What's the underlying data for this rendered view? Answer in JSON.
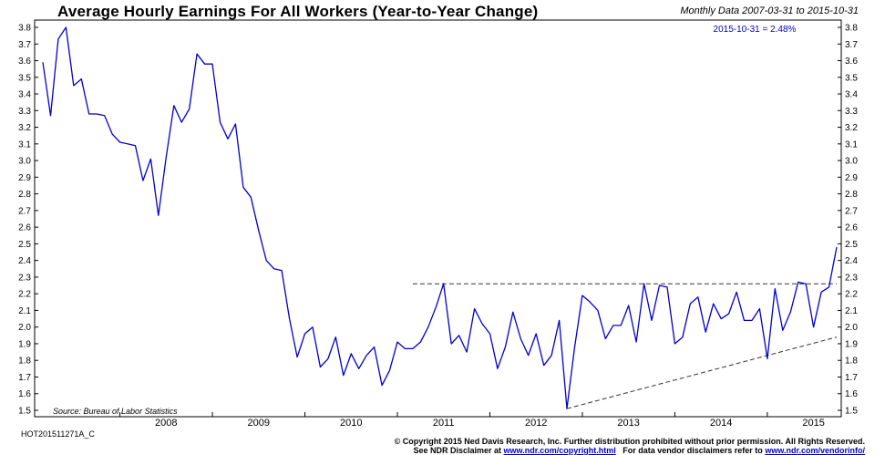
{
  "header": {
    "title": "Average Hourly Earnings For All Workers (Year-to-Year Change)",
    "subtitle": "Monthly Data 2007-03-31 to 2015-10-31"
  },
  "annotation": "2015-10-31 = 2.48%",
  "source": "Source:  Bureau of Labor Statistics",
  "footer": {
    "id": "HOT201511271A_C",
    "copyright": "© Copyright 2015 Ned Davis Research, Inc. Further distribution prohibited without prior permission. All Rights Reserved.",
    "disclaimer_prefix": "See NDR Disclaimer at",
    "disclaimer_link": "www.ndr.com/copyright.html",
    "vendor_prefix": "For data vendor disclaimers refer to",
    "vendor_link": "www.ndr.com/vendorinfo/"
  },
  "colors": {
    "series": "#0000cc",
    "annotation": "#0000cc",
    "reference_lines": "#333333"
  },
  "chart_data": {
    "type": "line",
    "title": "Average Hourly Earnings For All Workers (Year-to-Year Change)",
    "xlabel": "",
    "ylabel": "",
    "ylim": [
      1.5,
      3.8
    ],
    "yticks": [
      1.5,
      1.6,
      1.7,
      1.8,
      1.9,
      2.0,
      2.1,
      2.2,
      2.3,
      2.4,
      2.5,
      2.6,
      2.7,
      2.8,
      2.9,
      3.0,
      3.1,
      3.2,
      3.3,
      3.4,
      3.5,
      3.6,
      3.7,
      3.8
    ],
    "x_range": [
      "2007-03",
      "2015-10"
    ],
    "xticks": [
      "2008",
      "2009",
      "2010",
      "2011",
      "2012",
      "2013",
      "2014",
      "2015"
    ],
    "grid": false,
    "series": [
      {
        "x": [
          "2007-03",
          "2007-04",
          "2007-05",
          "2007-06",
          "2007-07",
          "2007-08",
          "2007-09",
          "2007-10",
          "2007-11",
          "2007-12",
          "2008-01",
          "2008-02",
          "2008-03",
          "2008-04",
          "2008-05",
          "2008-06",
          "2008-07",
          "2008-08",
          "2008-09",
          "2008-10",
          "2008-11",
          "2008-12",
          "2009-01",
          "2009-02",
          "2009-03",
          "2009-04",
          "2009-05",
          "2009-06",
          "2009-07",
          "2009-08",
          "2009-09",
          "2009-10",
          "2009-11",
          "2009-12",
          "2010-01",
          "2010-02",
          "2010-03",
          "2010-04",
          "2010-05",
          "2010-06",
          "2010-07",
          "2010-08",
          "2010-09",
          "2010-10",
          "2010-11",
          "2010-12",
          "2011-01",
          "2011-02",
          "2011-03",
          "2011-04",
          "2011-05",
          "2011-06",
          "2011-07",
          "2011-08",
          "2011-09",
          "2011-10",
          "2011-11",
          "2011-12",
          "2012-01",
          "2012-02",
          "2012-03",
          "2012-04",
          "2012-05",
          "2012-06",
          "2012-07",
          "2012-08",
          "2012-09",
          "2012-10",
          "2012-11",
          "2012-12",
          "2013-01",
          "2013-02",
          "2013-03",
          "2013-04",
          "2013-05",
          "2013-06",
          "2013-07",
          "2013-08",
          "2013-09",
          "2013-10",
          "2013-11",
          "2013-12",
          "2014-01",
          "2014-02",
          "2014-03",
          "2014-04",
          "2014-05",
          "2014-06",
          "2014-07",
          "2014-08",
          "2014-09",
          "2014-10",
          "2014-11",
          "2014-12",
          "2015-01",
          "2015-02",
          "2015-03",
          "2015-04",
          "2015-05",
          "2015-06",
          "2015-07",
          "2015-08",
          "2015-09",
          "2015-10"
        ],
        "values": [
          3.59,
          3.27,
          3.73,
          3.8,
          3.45,
          3.49,
          3.28,
          3.28,
          3.27,
          3.16,
          3.11,
          3.1,
          3.09,
          2.88,
          3.01,
          2.67,
          3.02,
          3.33,
          3.23,
          3.31,
          3.64,
          3.58,
          3.58,
          3.23,
          3.13,
          3.22,
          2.84,
          2.78,
          2.58,
          2.4,
          2.35,
          2.34,
          2.05,
          1.82,
          1.96,
          2.0,
          1.76,
          1.81,
          1.94,
          1.71,
          1.84,
          1.75,
          1.83,
          1.88,
          1.65,
          1.74,
          1.91,
          1.87,
          1.87,
          1.91,
          2.0,
          2.12,
          2.26,
          1.9,
          1.95,
          1.85,
          2.11,
          2.02,
          1.96,
          1.75,
          1.88,
          2.09,
          1.93,
          1.83,
          1.96,
          1.77,
          1.83,
          2.04,
          1.51,
          1.88,
          2.19,
          2.15,
          2.1,
          1.93,
          2.01,
          2.01,
          2.13,
          1.91,
          2.26,
          2.04,
          2.25,
          2.24,
          1.9,
          1.94,
          2.14,
          2.18,
          1.97,
          2.14,
          2.05,
          2.08,
          2.21,
          2.04,
          2.04,
          2.11,
          1.81,
          2.23,
          1.98,
          2.09,
          2.27,
          2.26,
          2.0,
          2.21,
          2.24,
          2.48
        ]
      }
    ],
    "reference_lines": [
      {
        "style": "dashed",
        "from": {
          "x": "2011-03",
          "y": 2.26
        },
        "to": {
          "x": "2015-10",
          "y": 2.26
        }
      },
      {
        "style": "dashed",
        "from": {
          "x": "2012-11",
          "y": 1.51
        },
        "to": {
          "x": "2015-10",
          "y": 1.94
        }
      }
    ]
  }
}
